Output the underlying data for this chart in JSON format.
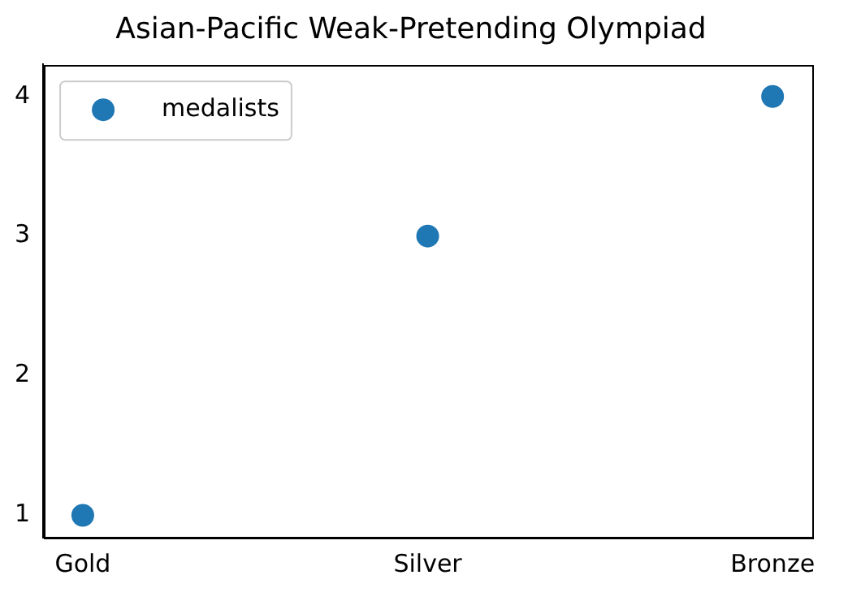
{
  "chart_data": {
    "type": "scatter",
    "title": "Asian-Pacific Weak-Pretending Olympiad",
    "categories": [
      "Gold",
      "Silver",
      "Bronze"
    ],
    "series": [
      {
        "name": "medalists",
        "color": "#1f77b4",
        "values": [
          1,
          3,
          4
        ]
      }
    ],
    "ylim": [
      0.84,
      4.23
    ],
    "yticks": [
      1,
      2,
      3,
      4
    ],
    "legend": "top left",
    "marker": "circle",
    "grid": false
  }
}
